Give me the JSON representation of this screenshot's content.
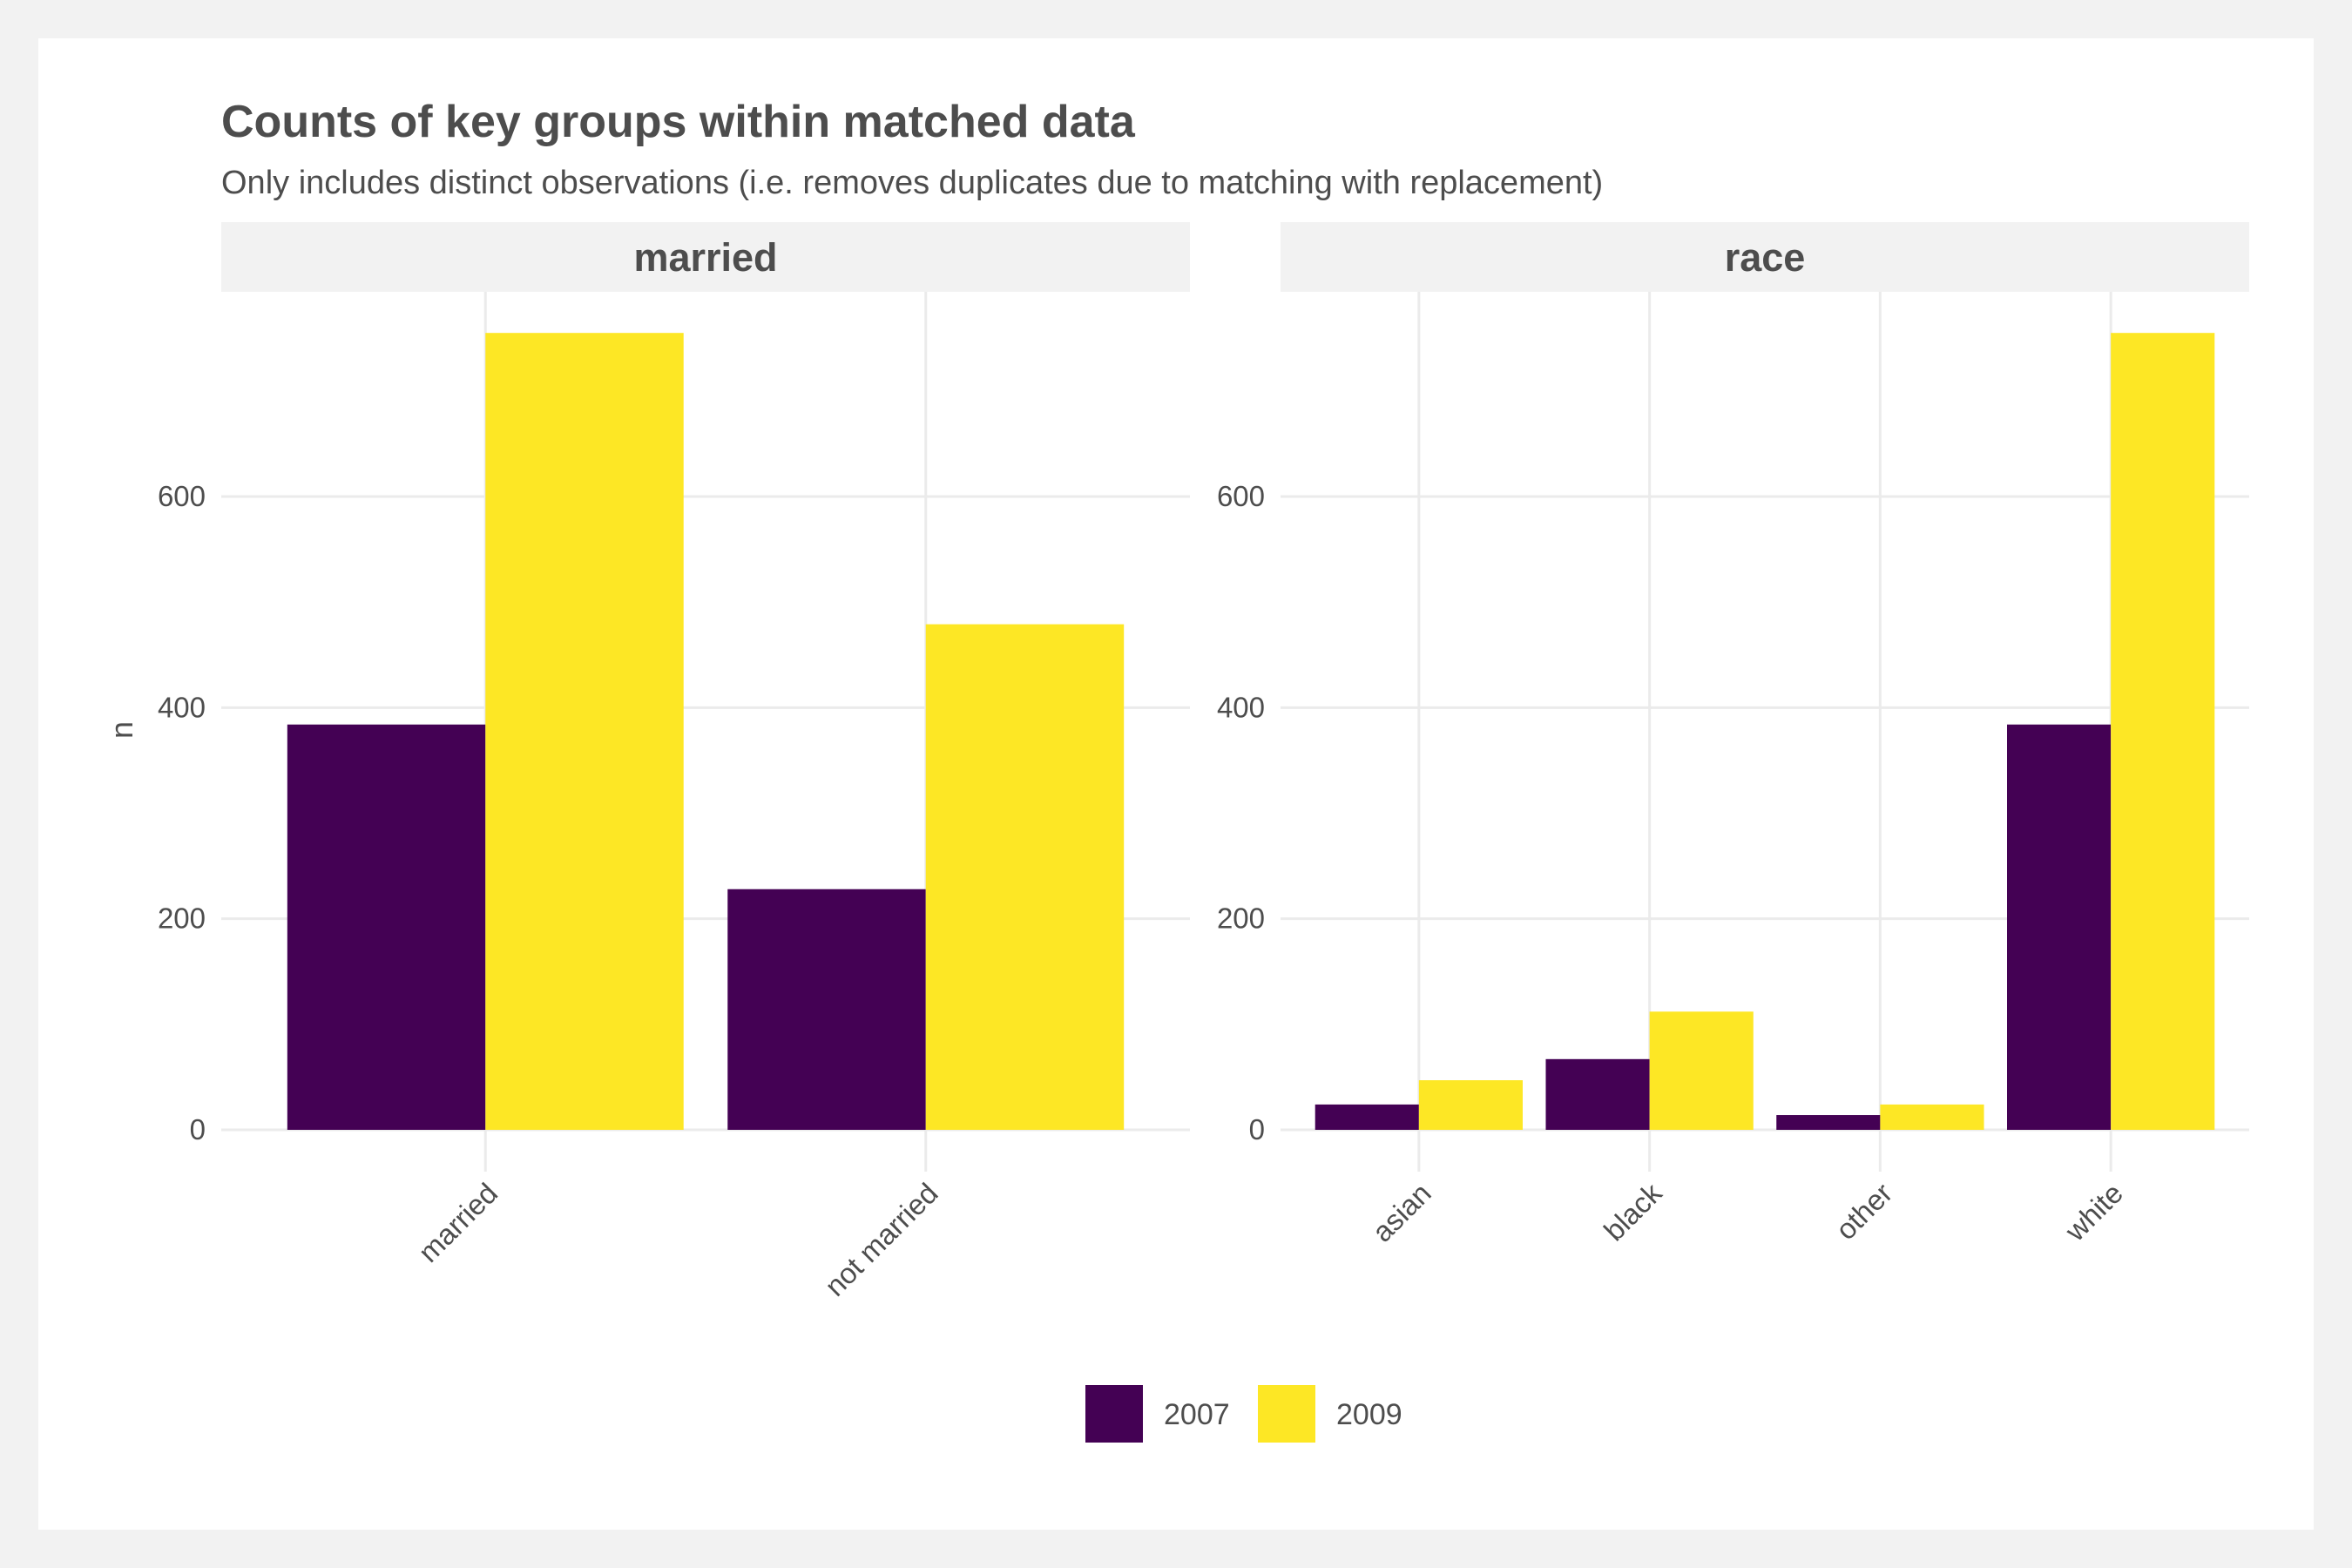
{
  "chart_data": {
    "type": "bar",
    "title": "Counts of key groups within matched data",
    "subtitle": "Only includes distinct observations (i.e. removes duplicates due to matching with replacement)",
    "ylabel": "n",
    "xlabel": "",
    "ylim": [
      0,
      790
    ],
    "yticks": [
      0,
      200,
      400,
      600
    ],
    "grid": true,
    "legend_position": "bottom",
    "legend": [
      {
        "name": "2007",
        "color": "#440154"
      },
      {
        "name": "2009",
        "color": "#FDE725"
      }
    ],
    "facets": [
      {
        "name": "married",
        "categories": [
          "married",
          "not married"
        ],
        "series": [
          {
            "name": "2007",
            "values": [
              384,
              228
            ]
          },
          {
            "name": "2009",
            "values": [
              755,
              479
            ]
          }
        ]
      },
      {
        "name": "race",
        "categories": [
          "asian",
          "black",
          "other",
          "white"
        ],
        "series": [
          {
            "name": "2007",
            "values": [
              24,
              67,
              14,
              384
            ]
          },
          {
            "name": "2009",
            "values": [
              47,
              112,
              24,
              755
            ]
          }
        ]
      }
    ]
  }
}
